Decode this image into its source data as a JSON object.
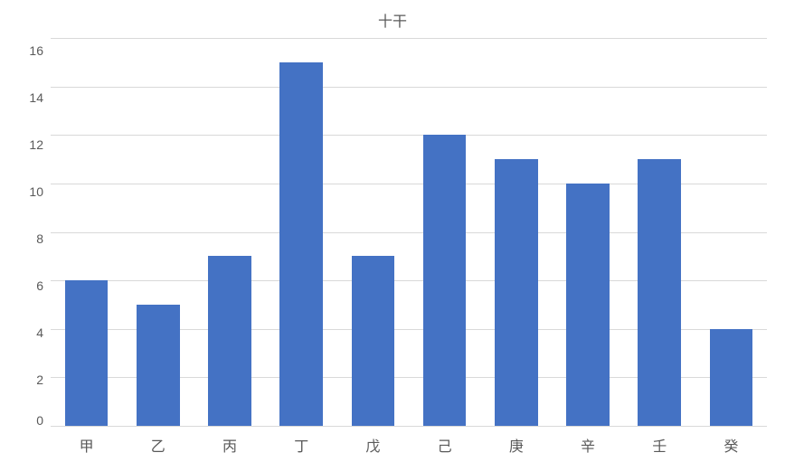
{
  "chart": {
    "type": "bar",
    "title": "十干",
    "title_fontsize": 16,
    "title_color": "#595959",
    "categories": [
      "甲",
      "乙",
      "丙",
      "丁",
      "戊",
      "己",
      "庚",
      "辛",
      "壬",
      "癸"
    ],
    "values": [
      6,
      5,
      7,
      15,
      7,
      12,
      11,
      10,
      11,
      4
    ],
    "bar_color": "#4472c4",
    "bar_width": 0.6,
    "ylim": [
      0,
      16
    ],
    "ytick_step": 2,
    "yticks": [
      16,
      14,
      12,
      10,
      8,
      6,
      4,
      2,
      0
    ],
    "background_color": "#ffffff",
    "grid_color": "#d9d9d9",
    "axis_text_color": "#595959",
    "xaxis_fontsize": 16,
    "yaxis_fontsize": 14,
    "font_family": "Microsoft YaHei"
  }
}
